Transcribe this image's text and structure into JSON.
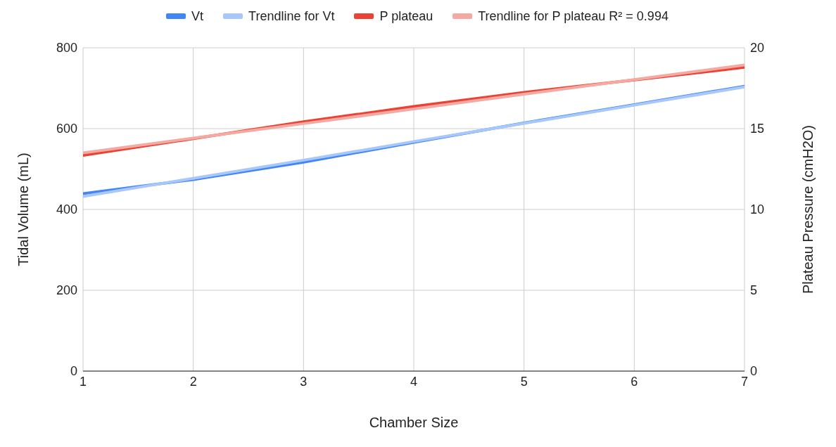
{
  "chart_data": {
    "type": "line",
    "xlabel": "Chamber Size",
    "ylabel": "Tidal Volume (mL)",
    "y2label": "Plateau Pressure (cmH2O)",
    "x": [
      1,
      2,
      3,
      4,
      5,
      6,
      7
    ],
    "xlim": [
      1,
      7
    ],
    "xticks": [
      1,
      2,
      3,
      4,
      5,
      6,
      7
    ],
    "ylim": [
      0,
      800
    ],
    "yticks": [
      0,
      200,
      400,
      600,
      800
    ],
    "y2lim": [
      0,
      20
    ],
    "y2ticks": [
      0,
      5,
      10,
      15,
      20
    ],
    "grid": true,
    "legend": "top",
    "marker": "none",
    "line_style": "solid",
    "series": [
      {
        "name": "Vt",
        "color": "#4285f4",
        "values": [
          439,
          474,
          517,
          566,
          614,
          659,
          705
        ]
      },
      {
        "name": "Trendline for Vt",
        "color": "#a8c7fa",
        "values": [
          432,
          477,
          522,
          568,
          613,
          658,
          703
        ]
      },
      {
        "name": "P plateau",
        "color": "#ea4335",
        "axis": "y2",
        "values": [
          13.35,
          14.38,
          15.42,
          16.37,
          17.24,
          18.01,
          18.79
        ]
      },
      {
        "name": "Trendline for P plateau R² = 0.994",
        "color": "#f4aaa3",
        "axis": "y2",
        "values": [
          13.5,
          14.41,
          15.31,
          16.22,
          17.13,
          18.03,
          18.94
        ]
      }
    ]
  }
}
